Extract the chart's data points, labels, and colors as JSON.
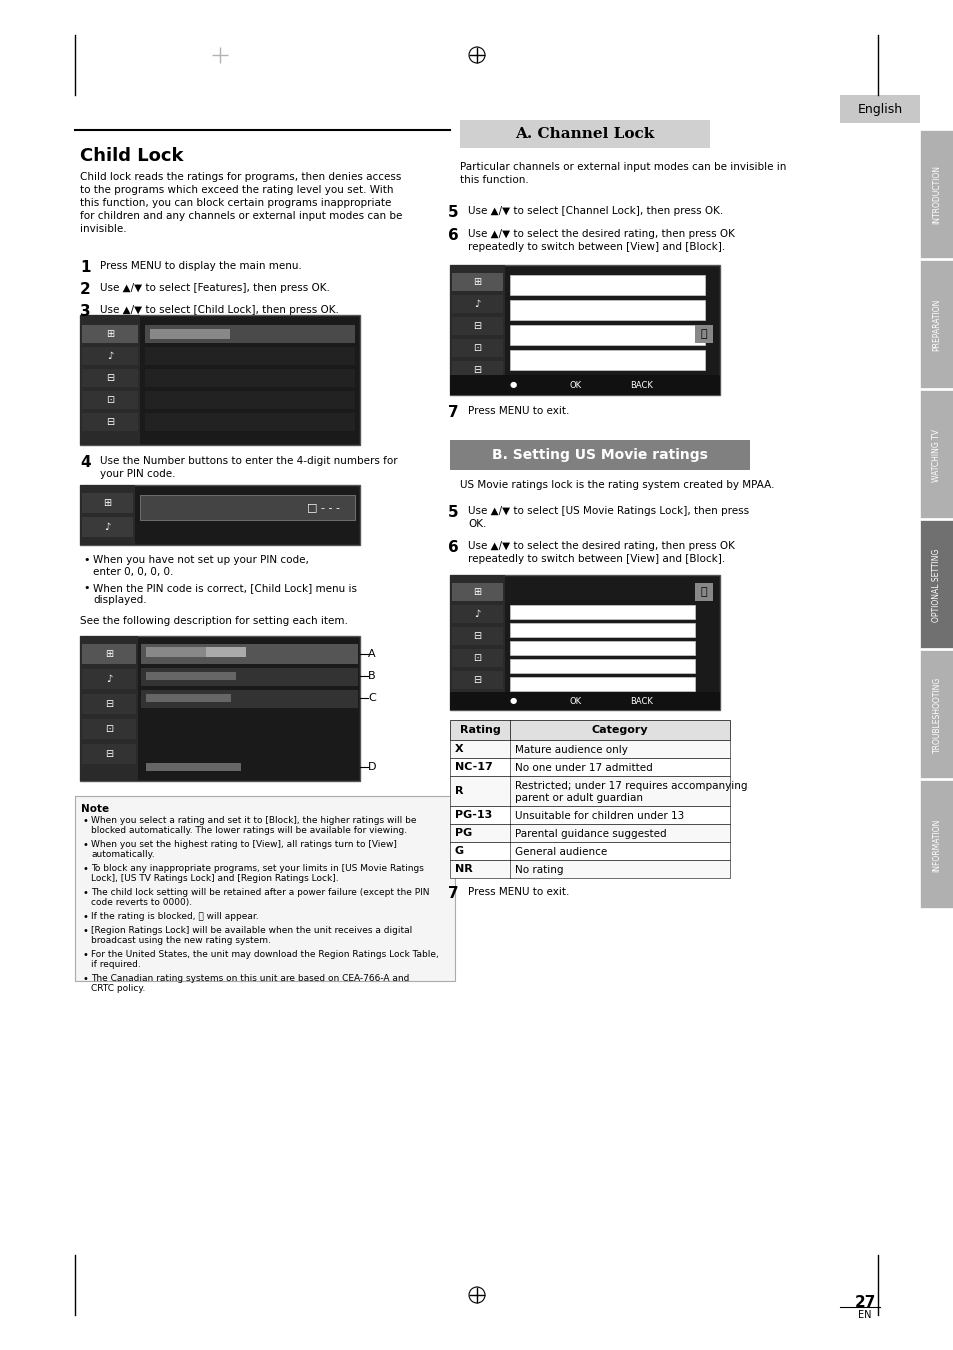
{
  "page_bg": "#ffffff",
  "sidebar_bg": "#808080",
  "sidebar_dark_bg": "#555555",
  "sidebar_labels": [
    "INTRODUCTION",
    "PREPARATION",
    "WATCHING TV",
    "OPTIONAL SETTING",
    "TROUBLESHOOTING",
    "INFORMATION"
  ],
  "sidebar_highlight": 3,
  "english_tab_bg": "#c0c0c0",
  "page_number": "27",
  "page_number_sub": "EN",
  "title_left": "Child Lock",
  "title_a": "A. Channel Lock",
  "title_b": "B. Setting US Movie ratings",
  "child_lock_body": "Child lock reads the ratings for programs, then denies access\nto the programs which exceed the rating level you set. With\nthis function, you can block certain programs inappropriate\nfor children and any channels or external input modes can be\ninvisible.",
  "step1": "Press MENU to display the main menu.",
  "step2": "Use ▲/▼ to select [Features], then press OK.",
  "step3": "Use ▲/▼ to select [Child Lock], then press OK.",
  "step4": "Use the Number buttons to enter the 4-digit numbers for\nyour PIN code.",
  "bullet1": "When you have not set up your PIN code,\nenter 0, 0, 0, 0.",
  "bullet2": "When the PIN code is correct, [Child Lock] menu is\ndisplayed.",
  "see_desc": "See the following description for setting each item.",
  "label_a": "A",
  "label_b": "B",
  "label_c": "C",
  "label_d": "D",
  "channel_lock_body": "Particular channels or external input modes can be invisible in\nthis function.",
  "step5_left": "Use ▲/▼ to select [Channel Lock], then press OK.",
  "step6_left": "Use ▲/▼ to select the desired rating, then press OK\nrepeatedly to switch between [View] and [Block].",
  "step7_left": "Press MENU to exit.",
  "step5_right": "Use ▲/▼ to select [US Movie Ratings Lock], then press\nOK.",
  "step6_right": "Use ▲/▼ to select the desired rating, then press OK\nrepeatedly to switch between [View] and [Block].",
  "step7_right": "Press MENU to exit.",
  "us_movie_body": "US Movie ratings lock is the rating system created by MPAA.",
  "note_title": "Note",
  "note_bullets": [
    "When you select a rating and set it to [Block], the higher ratings will be\nblocked automatically. The lower ratings will be available for viewing.",
    "When you set the highest rating to [View], all ratings turn to [View]\nautomatically.",
    "To block any inappropriate programs, set your limits in [US Movie Ratings\nLock], [US TV Ratings Lock] and [Region Ratings Lock].",
    "The child lock setting will be retained after a power failure (except the PIN\ncode reverts to 0000).",
    "If the rating is blocked, Ⓒ will appear.",
    "[Region Ratings Lock] will be available when the unit receives a digital\nbroadcast using the new rating system.",
    "For the United States, the unit may download the Region Ratings Lock Table,\nif required.",
    "The Canadian rating systems on this unit are based on CEA-766-A and\nCRTC policy."
  ],
  "table_headers": [
    "Rating",
    "Category"
  ],
  "table_rows": [
    [
      "X",
      "Mature audience only"
    ],
    [
      "NC-17",
      "No one under 17 admitted"
    ],
    [
      "R",
      "Restricted; under 17 requires accompanying\nparent or adult guardian"
    ],
    [
      "PG-13",
      "Unsuitable for children under 13"
    ],
    [
      "PG",
      "Parental guidance suggested"
    ],
    [
      "G",
      "General audience"
    ],
    [
      "NR",
      "No rating"
    ]
  ]
}
